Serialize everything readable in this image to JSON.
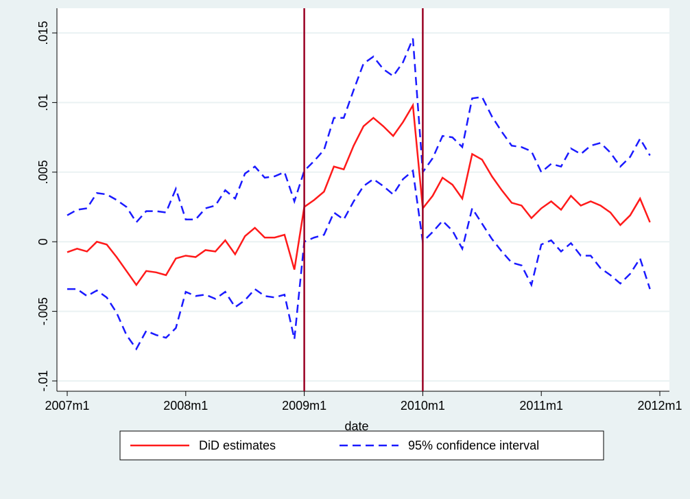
{
  "chart_data": {
    "type": "line",
    "xlabel": "date",
    "x": [
      "2007m1",
      "2007m2",
      "2007m3",
      "2007m4",
      "2007m5",
      "2007m6",
      "2007m7",
      "2007m8",
      "2007m9",
      "2007m10",
      "2007m11",
      "2007m12",
      "2008m1",
      "2008m2",
      "2008m3",
      "2008m4",
      "2008m5",
      "2008m6",
      "2008m7",
      "2008m8",
      "2008m9",
      "2008m10",
      "2008m11",
      "2008m12",
      "2009m1",
      "2009m2",
      "2009m3",
      "2009m4",
      "2009m5",
      "2009m6",
      "2009m7",
      "2009m8",
      "2009m9",
      "2009m10",
      "2009m11",
      "2009m12",
      "2010m1",
      "2010m2",
      "2010m3",
      "2010m4",
      "2010m5",
      "2010m6",
      "2010m7",
      "2010m8",
      "2010m9",
      "2010m10",
      "2010m11",
      "2010m12",
      "2011m1",
      "2011m2",
      "2011m3",
      "2011m4",
      "2011m5",
      "2011m6",
      "2011m7",
      "2011m8",
      "2011m9",
      "2011m10",
      "2011m11",
      "2011m12"
    ],
    "series": [
      {
        "name": "DiD estimates",
        "color": "#ff1a1a",
        "dashed": false,
        "values": [
          -0.00075,
          -0.0005,
          -0.0007,
          0,
          -0.0002,
          -0.0011,
          -0.0021,
          -0.0031,
          -0.0021,
          -0.0022,
          -0.0024,
          -0.0012,
          -0.001,
          -0.0011,
          -0.0006,
          -0.0007,
          0.0001,
          -0.0009,
          0.0004,
          0.001,
          0.0003,
          0.0003,
          0.0005,
          -0.002,
          0.0025,
          0.003,
          0.0036,
          0.0054,
          0.0052,
          0.0069,
          0.0083,
          0.0089,
          0.0083,
          0.0076,
          0.0086,
          0.0098,
          0.0024,
          0.0033,
          0.0046,
          0.0041,
          0.0031,
          0.0063,
          0.0059,
          0.0047,
          0.0037,
          0.0028,
          0.0026,
          0.0017,
          0.0024,
          0.0029,
          0.0023,
          0.0033,
          0.0026,
          0.0029,
          0.0026,
          0.0021,
          0.0012,
          0.0019,
          0.0031,
          0.0014
        ]
      },
      {
        "name": "95% confidence interval",
        "color": "#1a1aff",
        "dashed": true,
        "values": [
          0.0019,
          0.0023,
          0.0024,
          0.0035,
          0.0034,
          0.003,
          0.0025,
          0.0014,
          0.0022,
          0.0022,
          0.0021,
          0.0038,
          0.0016,
          0.0016,
          0.0024,
          0.0026,
          0.0037,
          0.0031,
          0.0049,
          0.0054,
          0.0046,
          0.0047,
          0.005,
          0.0029,
          0.0051,
          0.0058,
          0.0066,
          0.0089,
          0.0089,
          0.0109,
          0.0128,
          0.0133,
          0.0124,
          0.0119,
          0.0129,
          0.0146,
          0.005,
          0.006,
          0.0076,
          0.0075,
          0.0068,
          0.0103,
          0.0104,
          0.009,
          0.0079,
          0.0069,
          0.0068,
          0.0065,
          0.005,
          0.0056,
          0.0054,
          0.0067,
          0.0063,
          0.0069,
          0.0071,
          0.0064,
          0.0054,
          0.0061,
          0.0074,
          0.0062
        ]
      },
      {
        "color": "#1a1aff",
        "dashed": true,
        "values": [
          -0.0034,
          -0.0034,
          -0.0039,
          -0.0035,
          -0.004,
          -0.0051,
          -0.0067,
          -0.0077,
          -0.0064,
          -0.0067,
          -0.0069,
          -0.0062,
          -0.0036,
          -0.0039,
          -0.0038,
          -0.0041,
          -0.0036,
          -0.0047,
          -0.0042,
          -0.0034,
          -0.0039,
          -0.004,
          -0.0038,
          -0.007,
          0,
          0.0003,
          0.0005,
          0.0021,
          0.0016,
          0.0029,
          0.004,
          0.0045,
          0.004,
          0.0034,
          0.0045,
          0.0051,
          0,
          0.0007,
          0.0015,
          0.0008,
          -0.0005,
          0.0024,
          0.0013,
          0.0002,
          -0.0007,
          -0.0015,
          -0.0017,
          -0.0031,
          -0.0002,
          0.0001,
          -0.0007,
          -0.0001,
          -0.001,
          -0.001,
          -0.0019,
          -0.0024,
          -0.003,
          -0.0023,
          -0.0012,
          -0.0034
        ]
      }
    ],
    "xlim": [
      "2007m1",
      "2012m1"
    ],
    "xticks": [
      "2007m1",
      "2008m1",
      "2009m1",
      "2010m1",
      "2011m1",
      "2012m1"
    ],
    "ylim": [
      -0.01,
      0.015
    ],
    "yticks": [
      {
        "value": -0.01,
        "label": "-.01"
      },
      {
        "value": -0.005,
        "label": "-.005"
      },
      0,
      {
        "value": 0.005,
        "label": ".005"
      },
      {
        "value": 0.01,
        "label": ".01"
      },
      {
        "value": 0.015,
        "label": ".015"
      }
    ],
    "vlines": [
      "2009m1",
      "2010m1"
    ],
    "vline_color": "#990022",
    "grid": true
  }
}
